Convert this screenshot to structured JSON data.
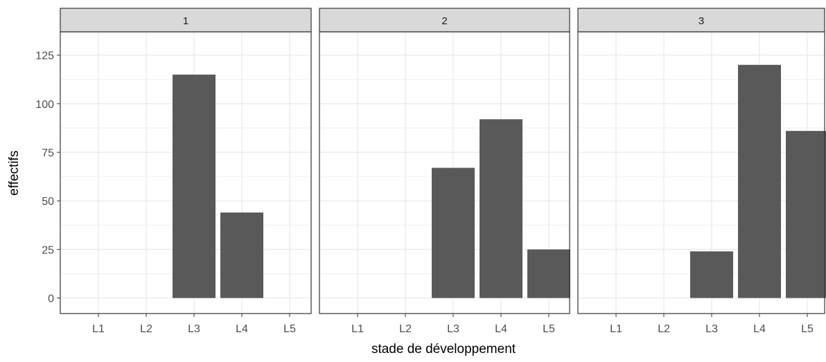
{
  "chart_data": {
    "type": "bar",
    "xlabel": "stade de développement",
    "ylabel": "effectifs",
    "categories": [
      "L1",
      "L2",
      "L3",
      "L4",
      "L5"
    ],
    "ylim": [
      -8,
      137
    ],
    "yticks": [
      0,
      25,
      50,
      75,
      100,
      125
    ],
    "grid": true,
    "facets": [
      {
        "label": "1",
        "values": [
          0,
          0,
          115,
          44,
          0
        ]
      },
      {
        "label": "2",
        "values": [
          0,
          0,
          67,
          92,
          25
        ]
      },
      {
        "label": "3",
        "values": [
          0,
          0,
          24,
          120,
          86
        ]
      }
    ]
  },
  "colors": {
    "bar": "#595959",
    "strip_fill": "#d9d9d9",
    "panel_border": "#333333",
    "grid": "#ebebeb",
    "tick_text": "#4d4d4d"
  }
}
